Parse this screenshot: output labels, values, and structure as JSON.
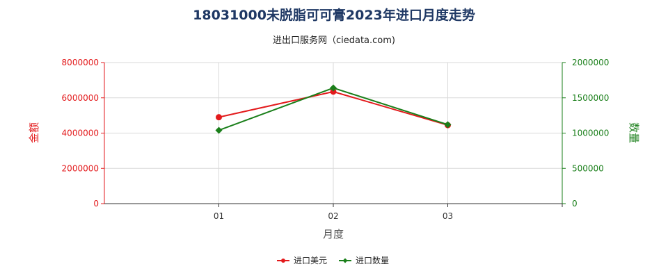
{
  "chart_data": {
    "type": "line",
    "title": "18031000未脱脂可可膏2023年进口月度走势",
    "subtitle": "进出口服务网（ciedata.com)",
    "xlabel": "月度",
    "categories": [
      "01",
      "02",
      "03"
    ],
    "y_left": {
      "label": "金额",
      "ylim": [
        0,
        8000000
      ],
      "ticks": [
        "0",
        "2000000",
        "4000000",
        "6000000",
        "8000000"
      ],
      "color": "#e31a1c"
    },
    "y_right": {
      "label": "数量",
      "ylim": [
        0,
        2000000
      ],
      "ticks": [
        "0",
        "500000",
        "1000000",
        "1500000",
        "2000000"
      ],
      "color": "#1a7f1a"
    },
    "series": [
      {
        "name": "进口美元",
        "axis": "left",
        "color": "#e31a1c",
        "marker": "circle",
        "values": [
          4900000,
          6350000,
          4450000
        ]
      },
      {
        "name": "进口数量",
        "axis": "right",
        "color": "#1a7f1a",
        "marker": "diamond",
        "values": [
          1040000,
          1640000,
          1120000
        ]
      }
    ],
    "grid": true,
    "legend_position": "bottom"
  }
}
